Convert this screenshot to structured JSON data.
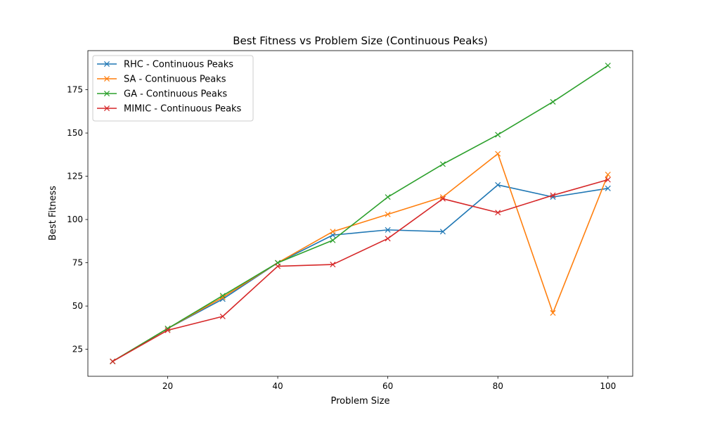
{
  "chart_data": {
    "type": "line",
    "title": "Best Fitness vs Problem Size (Continuous Peaks)",
    "xlabel": "Problem Size",
    "ylabel": "Best Fitness",
    "xlim": [
      5.5,
      104.5
    ],
    "ylim": [
      9.4,
      197.6
    ],
    "xticks": [
      20,
      40,
      60,
      80,
      100
    ],
    "yticks": [
      25,
      50,
      75,
      100,
      125,
      150,
      175
    ],
    "grid": false,
    "legend_position": "upper-left",
    "marker": "x",
    "x": [
      10,
      20,
      30,
      40,
      50,
      60,
      70,
      80,
      90,
      100
    ],
    "series": [
      {
        "name": "RHC - Continuous Peaks",
        "color": "#1f77b4",
        "values": [
          18,
          37,
          54,
          75,
          91,
          94,
          93,
          120,
          113,
          118
        ]
      },
      {
        "name": "SA - Continuous Peaks",
        "color": "#ff7f0e",
        "values": [
          18,
          37,
          55,
          75,
          93,
          103,
          113,
          138,
          46,
          126
        ]
      },
      {
        "name": "GA - Continuous Peaks",
        "color": "#2ca02c",
        "values": [
          18,
          37,
          56,
          75,
          88,
          113,
          132,
          149,
          168,
          189
        ]
      },
      {
        "name": "MIMIC - Continuous Peaks",
        "color": "#d62728",
        "values": [
          18,
          36,
          44,
          73,
          74,
          89,
          112,
          104,
          114,
          123
        ]
      }
    ]
  }
}
